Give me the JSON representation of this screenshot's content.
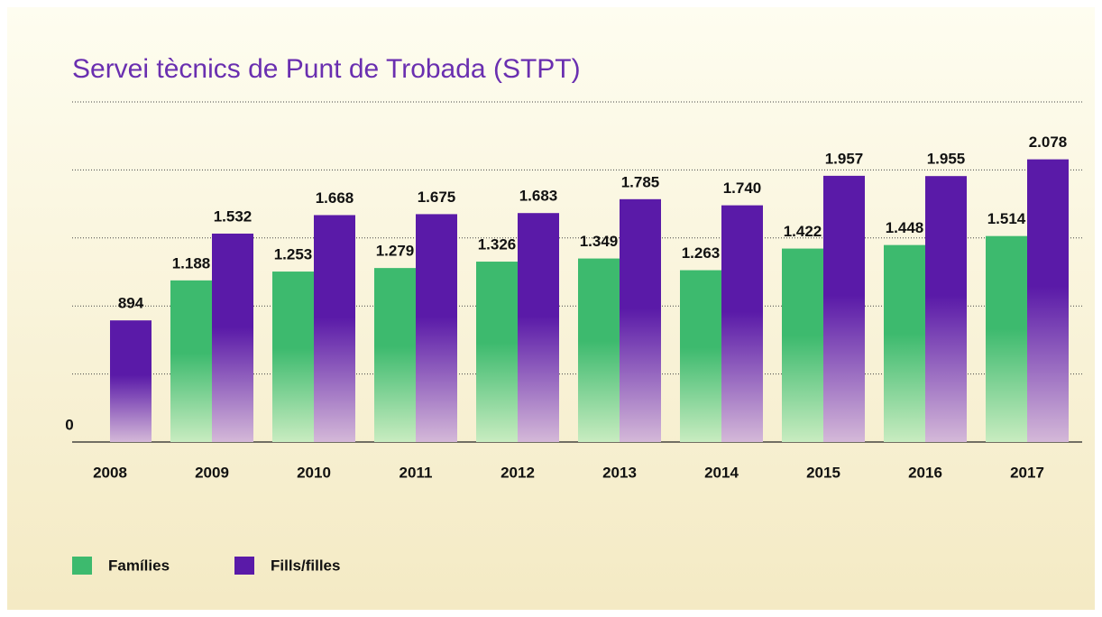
{
  "chart_data": {
    "type": "bar",
    "title": "Servei tècnics de Punt de Trobada (STPT)",
    "categories": [
      "2008",
      "2009",
      "2010",
      "2011",
      "2012",
      "2013",
      "2014",
      "2015",
      "2016",
      "2017"
    ],
    "series": [
      {
        "name": "Famílies",
        "color": "#3dba6e",
        "values": [
          0,
          1188,
          1253,
          1279,
          1326,
          1349,
          1263,
          1422,
          1448,
          1514
        ],
        "value_labels": [
          "0",
          "1.188",
          "1.253",
          "1.279",
          "1.326",
          "1.349",
          "1.263",
          "1.422",
          "1.448",
          "1.514"
        ]
      },
      {
        "name": "Fills/filles",
        "color": "#5a1aa8",
        "values": [
          894,
          1532,
          1668,
          1675,
          1683,
          1785,
          1740,
          1957,
          1955,
          2078
        ],
        "value_labels": [
          "894",
          "1.532",
          "1.668",
          "1.675",
          "1.683",
          "1.785",
          "1.740",
          "1.957",
          "1.955",
          "2.078"
        ]
      }
    ],
    "ylim": [
      0,
      2500
    ],
    "yticks": [
      0,
      500,
      1000,
      1500,
      2000,
      2500
    ],
    "grid": true
  }
}
